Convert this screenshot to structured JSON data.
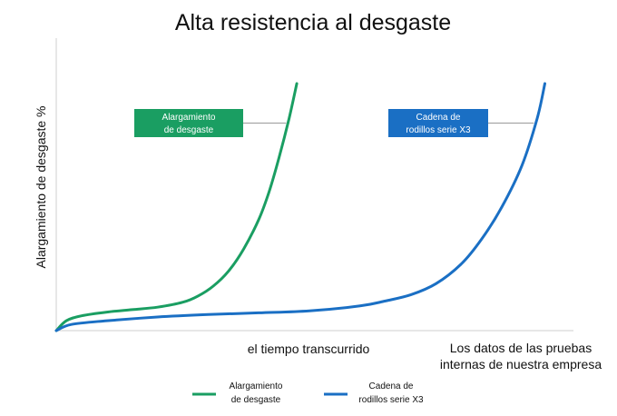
{
  "chart_data": {
    "type": "line",
    "title": "Alta resistencia al desgaste",
    "xlabel": "el tiempo transcurrido",
    "ylabel": "Alargamiento de desgaste %",
    "note_line1": "Los datos de las pruebas",
    "note_line2": "internas de nuestra empresa",
    "xlim": [
      0,
      100
    ],
    "ylim": [
      0,
      100
    ],
    "grid": false,
    "legend_position": "bottom",
    "series": [
      {
        "name_line1": "Alargamiento",
        "name_line2": "de desgaste",
        "color": "#1a9e62",
        "x": [
          0,
          2,
          5,
          10,
          15,
          20,
          25,
          28,
          31,
          34,
          37,
          40,
          42,
          44,
          46,
          47.5
        ],
        "y": [
          0,
          4,
          6,
          7.5,
          8.5,
          9.5,
          11.5,
          14,
          18,
          24,
          33,
          45,
          56,
          70,
          86,
          100
        ]
      },
      {
        "name_line1": "Cadena de",
        "name_line2": "rodillos serie X3",
        "color": "#1a6fc4",
        "x": [
          0,
          3,
          10,
          20,
          30,
          40,
          50,
          60,
          65,
          70,
          75,
          80,
          84,
          88,
          92,
          95,
          96.5
        ],
        "y": [
          0,
          2.5,
          4,
          5.5,
          6.5,
          7.2,
          8,
          10,
          12,
          14.5,
          19,
          27,
          37,
          50,
          67,
          86,
          100
        ]
      }
    ]
  }
}
